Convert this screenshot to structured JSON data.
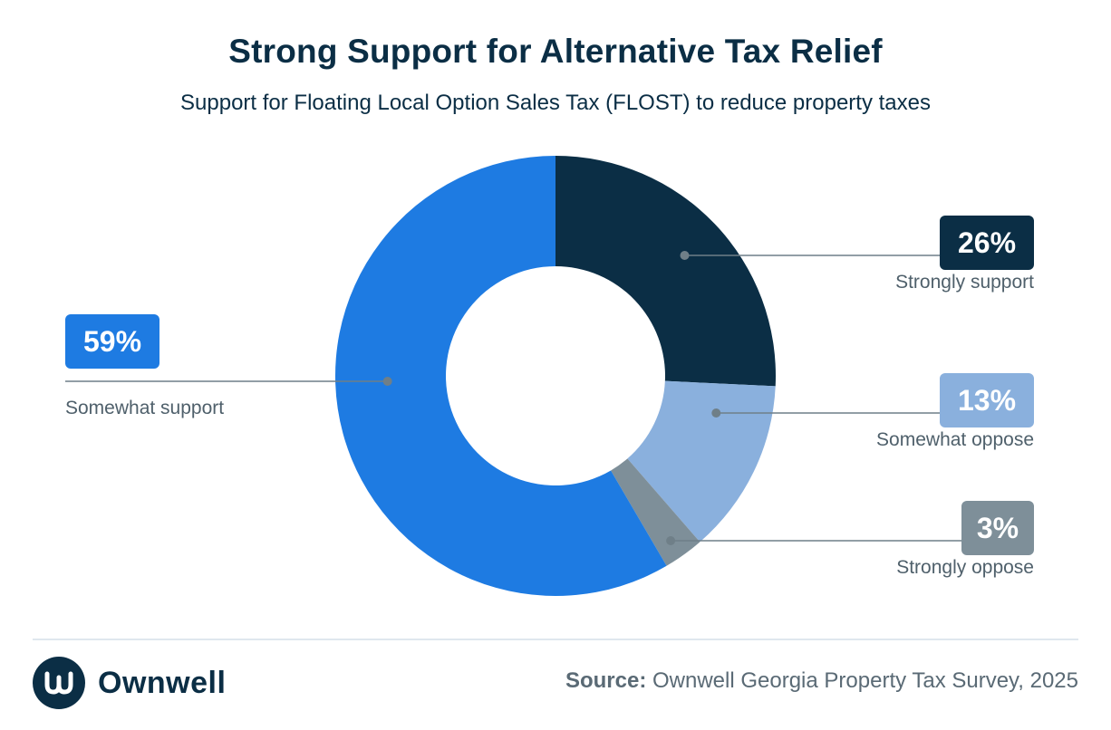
{
  "header": {
    "title": "Strong Support for Alternative Tax Relief",
    "subtitle": "Support for Floating Local Option Sales Tax (FLOST) to reduce property taxes"
  },
  "chart_data": {
    "type": "pie",
    "donut": true,
    "start_angle_deg": 0,
    "direction": "clockwise",
    "slices": [
      {
        "label": "Strongly support",
        "value": 26,
        "display": "26%",
        "color": "#0b2e45",
        "label_side": "right"
      },
      {
        "label": "Somewhat oppose",
        "value": 13,
        "display": "13%",
        "color": "#8ab0dd",
        "label_side": "right"
      },
      {
        "label": "Strongly oppose",
        "value": 3,
        "display": "3%",
        "color": "#7e8f99",
        "label_side": "right"
      },
      {
        "label": "Somewhat support",
        "value": 59,
        "display": "59%",
        "color": "#1e7be2",
        "label_side": "left"
      }
    ]
  },
  "footer": {
    "brand": "Ownwell",
    "source_label": "Source:",
    "source_text": " Ownwell Georgia Property Tax Survey, 2025"
  },
  "colors": {
    "navy": "#0b2e45",
    "leader": "#6f7f88",
    "divider": "#dfe7ee"
  }
}
